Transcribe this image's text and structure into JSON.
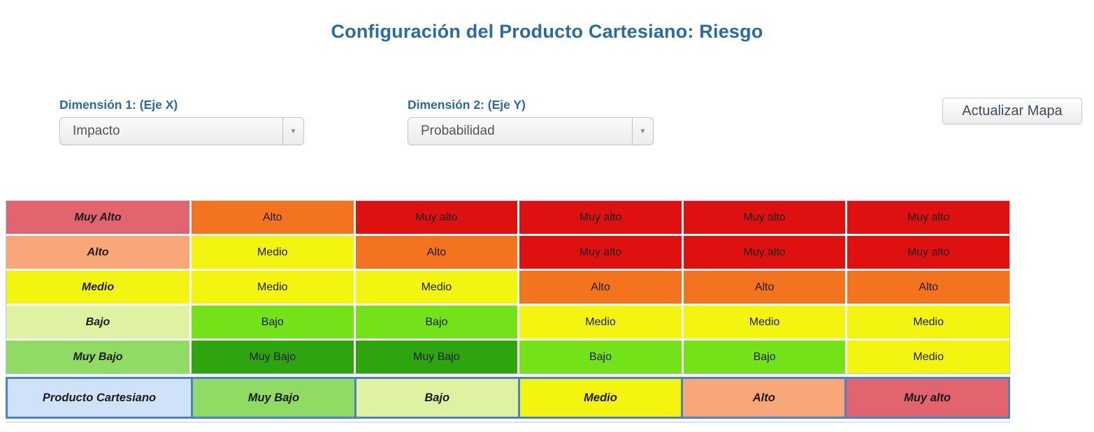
{
  "page": {
    "title": "Configuración del Producto Cartesiano: Riesgo"
  },
  "controls": {
    "dimension1": {
      "label": "Dimensión 1: (Eje X)",
      "value": "Impacto"
    },
    "dimension2": {
      "label": "Dimensión 2: (Eje Y)",
      "value": "Probabilidad"
    },
    "update_button": "Actualizar Mapa"
  },
  "colors": {
    "title_blue": "#2a6ba5",
    "risk_muy_alto": "#de1010",
    "risk_alto": "#f3731f",
    "risk_medio": "#f3f410",
    "risk_bajo": "#74e218",
    "risk_muy_bajo": "#2ea50f",
    "header_muy_alto": "#e2646f",
    "header_alto": "#f9a678",
    "header_medio": "#f3f410",
    "header_bajo": "#def2a2",
    "header_muy_bajo": "#8fdb63",
    "corner_blue": "#cfe2f8",
    "bottom_border_blue": "#4a82c4"
  },
  "matrix": {
    "rows": [
      {
        "header": {
          "label": "Muy Alto",
          "color": "#e2646f"
        },
        "cells": [
          {
            "label": "Alto",
            "color": "#f3731f"
          },
          {
            "label": "Muy alto",
            "color": "#de1010"
          },
          {
            "label": "Muy alto",
            "color": "#de1010"
          },
          {
            "label": "Muy alto",
            "color": "#de1010"
          },
          {
            "label": "Muy alto",
            "color": "#de1010"
          }
        ]
      },
      {
        "header": {
          "label": "Alto",
          "color": "#f9a678"
        },
        "cells": [
          {
            "label": "Medio",
            "color": "#f3f410"
          },
          {
            "label": "Alto",
            "color": "#f3731f"
          },
          {
            "label": "Muy alto",
            "color": "#de1010"
          },
          {
            "label": "Muy alto",
            "color": "#de1010"
          },
          {
            "label": "Muy alto",
            "color": "#de1010"
          }
        ]
      },
      {
        "header": {
          "label": "Medio",
          "color": "#f3f410"
        },
        "cells": [
          {
            "label": "Medio",
            "color": "#f3f410"
          },
          {
            "label": "Medio",
            "color": "#f3f410"
          },
          {
            "label": "Alto",
            "color": "#f3731f"
          },
          {
            "label": "Alto",
            "color": "#f3731f"
          },
          {
            "label": "Alto",
            "color": "#f3731f"
          }
        ]
      },
      {
        "header": {
          "label": "Bajo",
          "color": "#def2a2"
        },
        "cells": [
          {
            "label": "Bajo",
            "color": "#74e218"
          },
          {
            "label": "Bajo",
            "color": "#74e218"
          },
          {
            "label": "Medio",
            "color": "#f3f410"
          },
          {
            "label": "Medio",
            "color": "#f3f410"
          },
          {
            "label": "Medio",
            "color": "#f3f410"
          }
        ]
      },
      {
        "header": {
          "label": "Muy Bajo",
          "color": "#8fdb63"
        },
        "cells": [
          {
            "label": "Muy Bajo",
            "color": "#2ea50f"
          },
          {
            "label": "Muy Bajo",
            "color": "#2ea50f"
          },
          {
            "label": "Bajo",
            "color": "#74e218"
          },
          {
            "label": "Bajo",
            "color": "#74e218"
          },
          {
            "label": "Medio",
            "color": "#f3f410"
          }
        ]
      }
    ],
    "bottom_row": {
      "header": {
        "label": "Producto Cartesiano",
        "color": "#cfe2f8"
      },
      "cells": [
        {
          "label": "Muy Bajo",
          "color": "#8fdb63"
        },
        {
          "label": "Bajo",
          "color": "#def2a2"
        },
        {
          "label": "Medio",
          "color": "#f3f410"
        },
        {
          "label": "Alto",
          "color": "#f9a678"
        },
        {
          "label": "Muy alto",
          "color": "#e2646f"
        }
      ]
    }
  }
}
